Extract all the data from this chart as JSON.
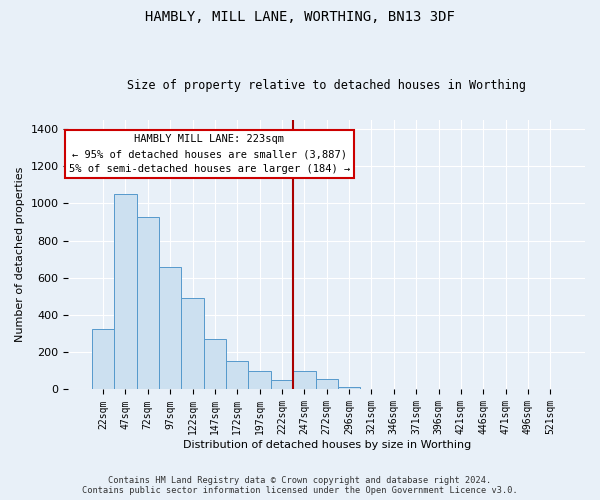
{
  "title": "HAMBLY, MILL LANE, WORTHING, BN13 3DF",
  "subtitle": "Size of property relative to detached houses in Worthing",
  "xlabel": "Distribution of detached houses by size in Worthing",
  "ylabel": "Number of detached properties",
  "footnote1": "Contains HM Land Registry data © Crown copyright and database right 2024.",
  "footnote2": "Contains public sector information licensed under the Open Government Licence v3.0.",
  "annotation_title": "HAMBLY MILL LANE: 223sqm",
  "annotation_line1": "← 95% of detached houses are smaller (3,887)",
  "annotation_line2": "5% of semi-detached houses are larger (184) →",
  "categories": [
    "22sqm",
    "47sqm",
    "72sqm",
    "97sqm",
    "122sqm",
    "147sqm",
    "172sqm",
    "197sqm",
    "222sqm",
    "247sqm",
    "272sqm",
    "296sqm",
    "321sqm",
    "346sqm",
    "371sqm",
    "396sqm",
    "421sqm",
    "446sqm",
    "471sqm",
    "496sqm",
    "521sqm"
  ],
  "values": [
    325,
    1050,
    925,
    660,
    490,
    270,
    155,
    100,
    50,
    100,
    55,
    15,
    3,
    3,
    3,
    2,
    0,
    0,
    0,
    0,
    0
  ],
  "bar_color": "#cce0f0",
  "bar_edge_color": "#5599cc",
  "marker_color": "#aa0000",
  "background_color": "#e8f0f8",
  "ylim": [
    0,
    1450
  ],
  "yticks": [
    0,
    200,
    400,
    600,
    800,
    1000,
    1200,
    1400
  ],
  "marker_idx": 8,
  "figsize": [
    6.0,
    5.0
  ],
  "dpi": 100
}
